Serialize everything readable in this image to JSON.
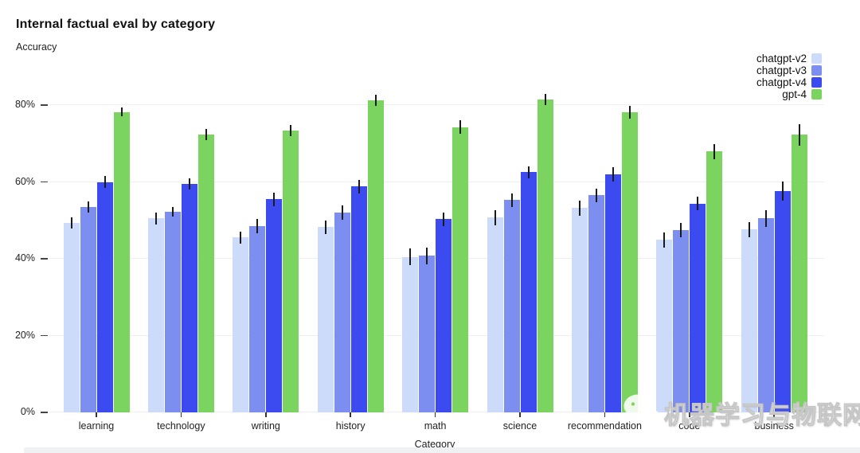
{
  "page": {
    "title": "Internal factual eval by category",
    "y_axis_title": "Accuracy",
    "x_axis_title": "Category"
  },
  "legend": {
    "position": "top-right",
    "items": [
      {
        "label": "chatgpt-v2",
        "color": "#ccdbfa"
      },
      {
        "label": "chatgpt-v3",
        "color": "#7c8ef0"
      },
      {
        "label": "chatgpt-v4",
        "color": "#3b4bef"
      },
      {
        "label": "gpt-4",
        "color": "#7bd45f"
      }
    ]
  },
  "watermark": {
    "icon": "wechat-icon",
    "text": "机器学习与物联网"
  },
  "chart_data": {
    "type": "bar",
    "title": "Internal factual eval by category",
    "ylabel": "Accuracy",
    "xlabel": "Category",
    "categories": [
      "learning",
      "technology",
      "writing",
      "history",
      "math",
      "science",
      "recommendation",
      "code",
      "business"
    ],
    "series": [
      {
        "name": "chatgpt-v2",
        "color": "#ccdbfa",
        "values": [
          49.3,
          50.5,
          45.5,
          48.2,
          40.5,
          50.7,
          53.2,
          44.9,
          47.6
        ],
        "errors": [
          1.5,
          1.5,
          1.5,
          1.8,
          2.2,
          2.0,
          2.0,
          2.0,
          2.0
        ]
      },
      {
        "name": "chatgpt-v3",
        "color": "#7c8ef0",
        "values": [
          53.5,
          52.2,
          48.5,
          52.0,
          40.8,
          55.3,
          56.5,
          47.5,
          50.5
        ],
        "errors": [
          1.5,
          1.3,
          1.8,
          1.8,
          2.2,
          1.8,
          1.8,
          1.8,
          2.2
        ]
      },
      {
        "name": "chatgpt-v4",
        "color": "#3b4bef",
        "values": [
          60.0,
          59.5,
          55.5,
          58.8,
          50.3,
          62.5,
          62.0,
          54.4,
          57.7
        ],
        "errors": [
          1.5,
          1.5,
          1.8,
          1.7,
          1.8,
          1.6,
          1.8,
          1.8,
          2.5
        ]
      },
      {
        "name": "gpt-4",
        "color": "#7bd45f",
        "values": [
          78.2,
          72.3,
          73.4,
          81.2,
          74.3,
          81.4,
          78.1,
          67.9,
          72.3
        ],
        "errors": [
          1.2,
          1.5,
          1.5,
          1.5,
          1.7,
          1.5,
          1.7,
          2.0,
          2.8
        ]
      }
    ],
    "yticks": [
      {
        "value": 0,
        "label": "0%"
      },
      {
        "value": 20,
        "label": "20%"
      },
      {
        "value": 40,
        "label": "40%"
      },
      {
        "value": 60,
        "label": "60%"
      },
      {
        "value": 80,
        "label": "80%"
      }
    ],
    "ylim": [
      0,
      85
    ],
    "grid": true,
    "error_bars": true,
    "legend_position": "top-right"
  }
}
